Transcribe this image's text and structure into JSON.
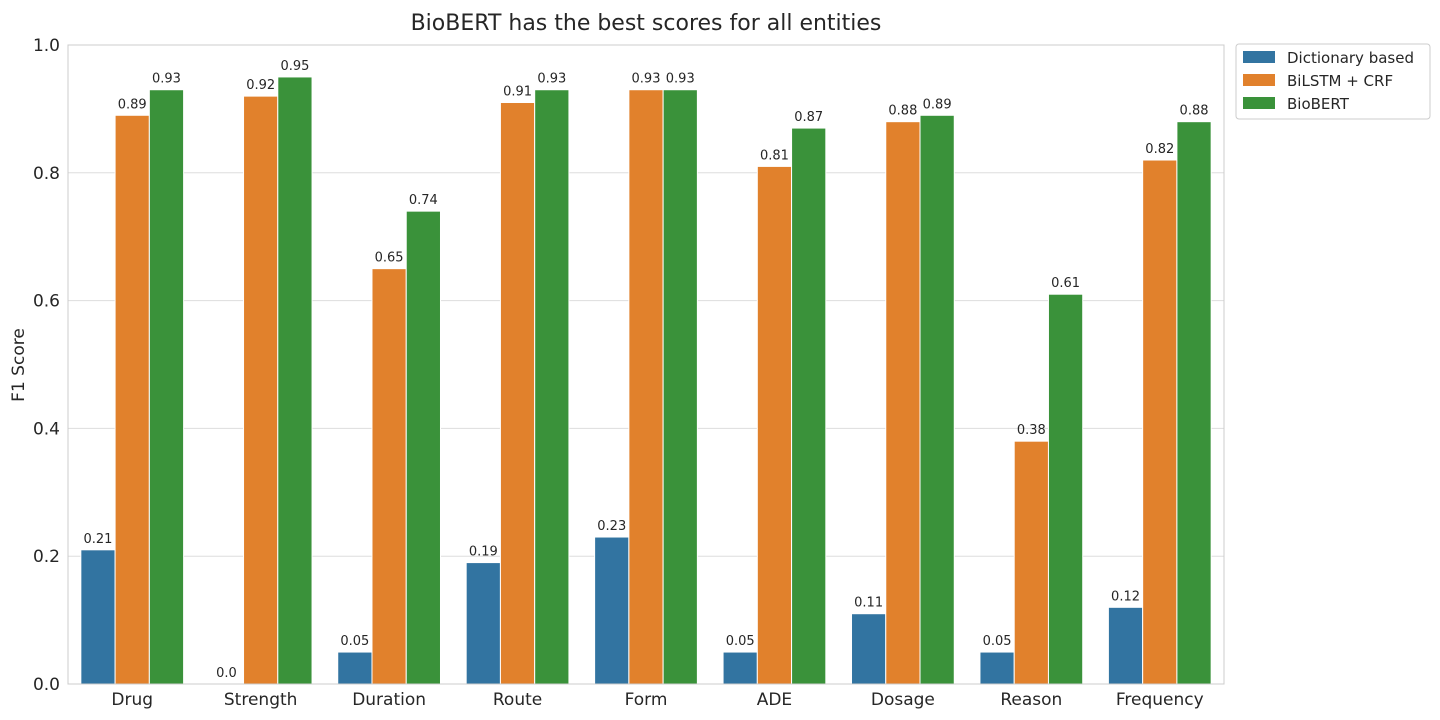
{
  "chart_data": {
    "type": "bar",
    "title": "BioBERT has the best scores for all entities",
    "xlabel": "",
    "ylabel": "F1 Score",
    "ylim": [
      0,
      1.0
    ],
    "yticks": [
      "0.0",
      "0.2",
      "0.4",
      "0.6",
      "0.8",
      "1.0"
    ],
    "grid": true,
    "legend_position": "outside top-right",
    "categories": [
      "Drug",
      "Strength",
      "Duration",
      "Route",
      "Form",
      "ADE",
      "Dosage",
      "Reason",
      "Frequency"
    ],
    "series": [
      {
        "name": "Dictionary based",
        "color": "#3274a1",
        "values": [
          0.21,
          0.0,
          0.05,
          0.19,
          0.23,
          0.05,
          0.11,
          0.05,
          0.12
        ],
        "labels": [
          "0.21",
          "0.0",
          "0.05",
          "0.19",
          "0.23",
          "0.05",
          "0.11",
          "0.05",
          "0.12"
        ]
      },
      {
        "name": "BiLSTM + CRF",
        "color": "#e1812c",
        "values": [
          0.89,
          0.92,
          0.65,
          0.91,
          0.93,
          0.81,
          0.88,
          0.38,
          0.82
        ],
        "labels": [
          "0.89",
          "0.92",
          "0.65",
          "0.91",
          "0.93",
          "0.81",
          "0.88",
          "0.38",
          "0.82"
        ]
      },
      {
        "name": "BioBERT",
        "color": "#3a923a",
        "values": [
          0.93,
          0.95,
          0.74,
          0.93,
          0.93,
          0.87,
          0.89,
          0.61,
          0.88
        ],
        "labels": [
          "0.93",
          "0.95",
          "0.74",
          "0.93",
          "0.93",
          "0.87",
          "0.89",
          "0.61",
          "0.88"
        ]
      }
    ]
  }
}
